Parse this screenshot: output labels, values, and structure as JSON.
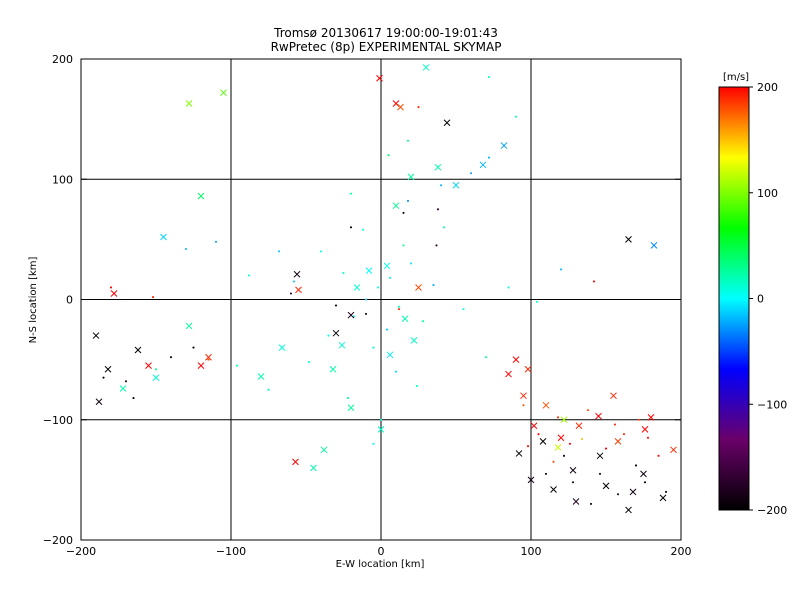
{
  "chart_data": {
    "type": "scatter",
    "title": "Tromsø 20130617 19:00:00-19:01:43",
    "subtitle": "RwPretec (8p) EXPERIMENTAL SKYMAP",
    "xlabel": "E-W location [km]",
    "ylabel": "N-S location [km]",
    "xlim": [
      -200,
      200
    ],
    "ylim": [
      -200,
      200
    ],
    "x_ticks": [
      -200,
      -100,
      0,
      100,
      200
    ],
    "x_tick_labels": [
      "−200",
      "−100",
      "0",
      "100",
      "200"
    ],
    "y_ticks": [
      -200,
      -100,
      0,
      100,
      200
    ],
    "y_tick_labels": [
      "−200",
      "−100",
      "0",
      "100",
      "200"
    ],
    "grid": true,
    "colorbar": {
      "label": "[m/s]",
      "range": [
        -200,
        200
      ],
      "ticks": [
        -200,
        -100,
        0,
        100,
        200
      ],
      "tick_labels": [
        "−200",
        "−100",
        "0",
        "100",
        "200"
      ],
      "stops": [
        "#000000",
        "#6a006a",
        "#0000ff",
        "#00ffff",
        "#00ff00",
        "#ffff00",
        "#ff0000"
      ]
    },
    "series": [
      {
        "marker": "dot",
        "points": [
          {
            "x": -2,
            "y": 10,
            "c": 0
          },
          {
            "x": 6,
            "y": 18,
            "c": 10
          },
          {
            "x": -10,
            "y": 0,
            "c": -10
          },
          {
            "x": 12,
            "y": -6,
            "c": 20
          },
          {
            "x": -18,
            "y": -14,
            "c": 5
          },
          {
            "x": 20,
            "y": 30,
            "c": -5
          },
          {
            "x": -25,
            "y": 22,
            "c": 15
          },
          {
            "x": 4,
            "y": -25,
            "c": -15
          },
          {
            "x": -5,
            "y": -40,
            "c": 10
          },
          {
            "x": 28,
            "y": -18,
            "c": 25
          },
          {
            "x": -35,
            "y": -30,
            "c": 0
          },
          {
            "x": 35,
            "y": 12,
            "c": -20
          },
          {
            "x": -40,
            "y": 40,
            "c": 5
          },
          {
            "x": 15,
            "y": 45,
            "c": 30
          },
          {
            "x": -12,
            "y": 58,
            "c": 12
          },
          {
            "x": 42,
            "y": 60,
            "c": 18
          },
          {
            "x": -58,
            "y": 15,
            "c": -12
          },
          {
            "x": 55,
            "y": -8,
            "c": 8
          },
          {
            "x": -48,
            "y": -52,
            "c": 14
          },
          {
            "x": 10,
            "y": -60,
            "c": -8
          },
          {
            "x": 24,
            "y": -72,
            "c": 12
          },
          {
            "x": -22,
            "y": -82,
            "c": 24
          },
          {
            "x": 0,
            "y": -100,
            "c": 10
          },
          {
            "x": -5,
            "y": -120,
            "c": 0
          },
          {
            "x": 18,
            "y": 82,
            "c": -30
          },
          {
            "x": 40,
            "y": 95,
            "c": -20
          },
          {
            "x": 60,
            "y": 105,
            "c": -25
          },
          {
            "x": 72,
            "y": 118,
            "c": -18
          },
          {
            "x": 90,
            "y": 152,
            "c": 20
          },
          {
            "x": -20,
            "y": 88,
            "c": 25
          },
          {
            "x": -68,
            "y": 40,
            "c": -15
          },
          {
            "x": -88,
            "y": 20,
            "c": 10
          },
          {
            "x": -110,
            "y": 48,
            "c": -22
          },
          {
            "x": -130,
            "y": 42,
            "c": -18
          },
          {
            "x": -96,
            "y": -55,
            "c": 22
          },
          {
            "x": -75,
            "y": -75,
            "c": 18
          },
          {
            "x": -150,
            "y": -58,
            "c": 30
          },
          {
            "x": 70,
            "y": -48,
            "c": 25
          },
          {
            "x": 85,
            "y": 10,
            "c": 12
          },
          {
            "x": 104,
            "y": -2,
            "c": 8
          },
          {
            "x": 120,
            "y": 25,
            "c": -18
          },
          {
            "x": 142,
            "y": 15,
            "c": 200
          },
          {
            "x": 5,
            "y": 120,
            "c": 40
          },
          {
            "x": 18,
            "y": 132,
            "c": 30
          },
          {
            "x": 72,
            "y": 185,
            "c": 15
          },
          {
            "x": -20,
            "y": 60,
            "c": -200
          },
          {
            "x": 37,
            "y": 45,
            "c": -180
          },
          {
            "x": -60,
            "y": 5,
            "c": -180
          },
          {
            "x": -30,
            "y": -5,
            "c": -200
          },
          {
            "x": -10,
            "y": -12,
            "c": -190
          },
          {
            "x": 15,
            "y": 72,
            "c": -200
          },
          {
            "x": 38,
            "y": 75,
            "c": -170
          },
          {
            "x": -185,
            "y": -65,
            "c": -200
          },
          {
            "x": -170,
            "y": -68,
            "c": -180
          },
          {
            "x": -165,
            "y": -82,
            "c": -200
          },
          {
            "x": -140,
            "y": -48,
            "c": -190
          },
          {
            "x": -125,
            "y": -40,
            "c": -200
          },
          {
            "x": -115,
            "y": -50,
            "c": 180
          },
          {
            "x": -152,
            "y": 2,
            "c": 190
          },
          {
            "x": -180,
            "y": 10,
            "c": 200
          },
          {
            "x": 12,
            "y": -8,
            "c": 190
          },
          {
            "x": 25,
            "y": 160,
            "c": 190
          },
          {
            "x": 95,
            "y": -88,
            "c": 180
          },
          {
            "x": 105,
            "y": -112,
            "c": 200
          },
          {
            "x": 118,
            "y": -98,
            "c": 190
          },
          {
            "x": 126,
            "y": -120,
            "c": 200
          },
          {
            "x": 138,
            "y": -92,
            "c": 180
          },
          {
            "x": 150,
            "y": -124,
            "c": 200
          },
          {
            "x": 162,
            "y": -112,
            "c": 190
          },
          {
            "x": 172,
            "y": -100,
            "c": 185
          },
          {
            "x": 185,
            "y": -130,
            "c": 200
          },
          {
            "x": 110,
            "y": -145,
            "c": -200
          },
          {
            "x": 128,
            "y": -152,
            "c": -190
          },
          {
            "x": 146,
            "y": -145,
            "c": -200
          },
          {
            "x": 158,
            "y": -162,
            "c": -180
          },
          {
            "x": 176,
            "y": -152,
            "c": -200
          },
          {
            "x": 190,
            "y": -160,
            "c": -190
          },
          {
            "x": 170,
            "y": -138,
            "c": -200
          },
          {
            "x": 140,
            "y": -170,
            "c": -200
          },
          {
            "x": 122,
            "y": -130,
            "c": -190
          },
          {
            "x": 98,
            "y": -122,
            "c": 200
          },
          {
            "x": 115,
            "y": -135,
            "c": 180
          },
          {
            "x": 134,
            "y": -116,
            "c": 150
          },
          {
            "x": 156,
            "y": -104,
            "c": 190
          },
          {
            "x": 178,
            "y": -115,
            "c": 200
          }
        ]
      },
      {
        "marker": "cross",
        "points": [
          {
            "x": -8,
            "y": 24,
            "c": 0
          },
          {
            "x": 4,
            "y": 28,
            "c": 5
          },
          {
            "x": -16,
            "y": 10,
            "c": 10
          },
          {
            "x": 16,
            "y": -16,
            "c": 20
          },
          {
            "x": -26,
            "y": -38,
            "c": 12
          },
          {
            "x": 6,
            "y": -46,
            "c": -5
          },
          {
            "x": 22,
            "y": -34,
            "c": 15
          },
          {
            "x": -32,
            "y": -58,
            "c": 22
          },
          {
            "x": -20,
            "y": -90,
            "c": 28
          },
          {
            "x": 0,
            "y": -108,
            "c": 15
          },
          {
            "x": -38,
            "y": -125,
            "c": 25
          },
          {
            "x": -45,
            "y": -140,
            "c": 20
          },
          {
            "x": 10,
            "y": 78,
            "c": 30
          },
          {
            "x": 20,
            "y": 102,
            "c": 25
          },
          {
            "x": 38,
            "y": 110,
            "c": 20
          },
          {
            "x": 50,
            "y": 95,
            "c": -10
          },
          {
            "x": 68,
            "y": 112,
            "c": -20
          },
          {
            "x": 82,
            "y": 128,
            "c": -25
          },
          {
            "x": 30,
            "y": 193,
            "c": 15
          },
          {
            "x": -120,
            "y": 86,
            "c": 40
          },
          {
            "x": -145,
            "y": 52,
            "c": -10
          },
          {
            "x": -172,
            "y": -74,
            "c": 20
          },
          {
            "x": -150,
            "y": -65,
            "c": 10
          },
          {
            "x": -128,
            "y": -22,
            "c": 25
          },
          {
            "x": -80,
            "y": -64,
            "c": 20
          },
          {
            "x": -66,
            "y": -40,
            "c": 10
          },
          {
            "x": 10,
            "y": 163,
            "c": 200
          },
          {
            "x": 13,
            "y": 160,
            "c": 180
          },
          {
            "x": -1,
            "y": 184,
            "c": 200
          },
          {
            "x": -128,
            "y": 163,
            "c": 100
          },
          {
            "x": -105,
            "y": 172,
            "c": 90
          },
          {
            "x": -190,
            "y": -30,
            "c": -200
          },
          {
            "x": -182,
            "y": -58,
            "c": -200
          },
          {
            "x": -162,
            "y": -42,
            "c": -200
          },
          {
            "x": -188,
            "y": -85,
            "c": -190
          },
          {
            "x": -30,
            "y": -28,
            "c": -200
          },
          {
            "x": -20,
            "y": -13,
            "c": -180
          },
          {
            "x": -56,
            "y": 21,
            "c": -190
          },
          {
            "x": 44,
            "y": 147,
            "c": -200
          },
          {
            "x": 165,
            "y": 50,
            "c": -200
          },
          {
            "x": 182,
            "y": 45,
            "c": -30
          },
          {
            "x": -155,
            "y": -55,
            "c": 200
          },
          {
            "x": -120,
            "y": -55,
            "c": 200
          },
          {
            "x": -115,
            "y": -48,
            "c": 190
          },
          {
            "x": -178,
            "y": 5,
            "c": 200
          },
          {
            "x": -57,
            "y": -135,
            "c": 200
          },
          {
            "x": -55,
            "y": 8,
            "c": 190
          },
          {
            "x": 25,
            "y": 10,
            "c": 180
          },
          {
            "x": 85,
            "y": -62,
            "c": 200
          },
          {
            "x": 95,
            "y": -80,
            "c": 190
          },
          {
            "x": 102,
            "y": -105,
            "c": 200
          },
          {
            "x": 110,
            "y": -88,
            "c": 180
          },
          {
            "x": 120,
            "y": -115,
            "c": 200
          },
          {
            "x": 132,
            "y": -105,
            "c": 190
          },
          {
            "x": 145,
            "y": -97,
            "c": 200
          },
          {
            "x": 158,
            "y": -118,
            "c": 185
          },
          {
            "x": 176,
            "y": -108,
            "c": 200
          },
          {
            "x": 195,
            "y": -125,
            "c": 190
          },
          {
            "x": 180,
            "y": -98,
            "c": 200
          },
          {
            "x": 155,
            "y": -80,
            "c": 190
          },
          {
            "x": 92,
            "y": -128,
            "c": -200
          },
          {
            "x": 100,
            "y": -150,
            "c": -190
          },
          {
            "x": 115,
            "y": -158,
            "c": -200
          },
          {
            "x": 130,
            "y": -168,
            "c": -180
          },
          {
            "x": 150,
            "y": -155,
            "c": -200
          },
          {
            "x": 165,
            "y": -175,
            "c": -200
          },
          {
            "x": 175,
            "y": -145,
            "c": -190
          },
          {
            "x": 188,
            "y": -165,
            "c": -200
          },
          {
            "x": 168,
            "y": -160,
            "c": -190
          },
          {
            "x": 146,
            "y": -130,
            "c": -200
          },
          {
            "x": 128,
            "y": -142,
            "c": -190
          },
          {
            "x": 108,
            "y": -118,
            "c": -200
          },
          {
            "x": 122,
            "y": -100,
            "c": 110
          },
          {
            "x": 118,
            "y": -123,
            "c": 120
          },
          {
            "x": 90,
            "y": -50,
            "c": 200
          },
          {
            "x": 98,
            "y": -58,
            "c": 190
          }
        ]
      }
    ]
  }
}
